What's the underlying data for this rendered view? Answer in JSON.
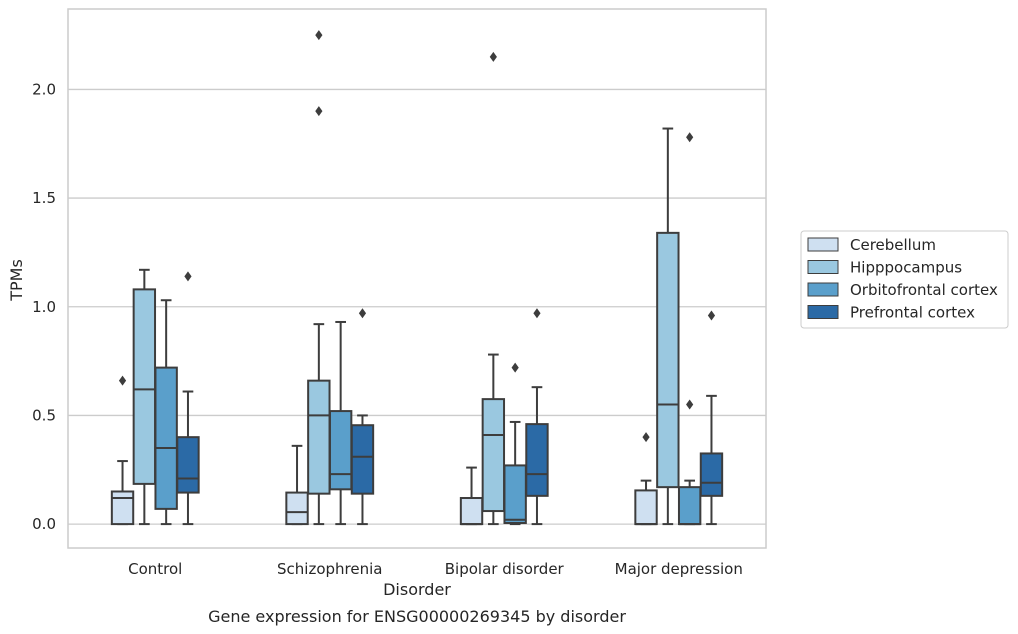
{
  "chart_data": {
    "type": "box",
    "title": "",
    "caption": "Gene expression for ENSG00000269345 by disorder",
    "xlabel": "Disorder",
    "ylabel": "TPMs",
    "ylim": [
      -0.11,
      2.37
    ],
    "yticks": [
      "0.0",
      "0.5",
      "1.0",
      "1.5",
      "2.0"
    ],
    "ytick_values": [
      0.0,
      0.5,
      1.0,
      1.5,
      2.0
    ],
    "grid": "horizontal",
    "legend_position": "right",
    "categories": [
      "Control",
      "Schizophrenia",
      "Bipolar disorder",
      "Major depression"
    ],
    "series": [
      {
        "name": "Cerebellum",
        "color": "#cfe0f1",
        "boxes": [
          {
            "whislo": 0.0,
            "q1": 0.0,
            "med": 0.12,
            "q3": 0.15,
            "whishi": 0.29,
            "fliers": [
              0.66
            ]
          },
          {
            "whislo": 0.0,
            "q1": 0.0,
            "med": 0.055,
            "q3": 0.145,
            "whishi": 0.36,
            "fliers": []
          },
          {
            "whislo": 0.0,
            "q1": 0.0,
            "med": 0.0,
            "q3": 0.12,
            "whishi": 0.26,
            "fliers": []
          },
          {
            "whislo": 0.0,
            "q1": 0.0,
            "med": 0.0,
            "q3": 0.155,
            "whishi": 0.2,
            "fliers": [
              0.4
            ]
          }
        ]
      },
      {
        "name": "Hipppocampus",
        "color": "#9ac8e0",
        "boxes": [
          {
            "whislo": 0.0,
            "q1": 0.185,
            "med": 0.62,
            "q3": 1.08,
            "whishi": 1.17,
            "fliers": []
          },
          {
            "whislo": 0.0,
            "q1": 0.14,
            "med": 0.5,
            "q3": 0.66,
            "whishi": 0.92,
            "fliers": [
              1.9,
              2.25
            ]
          },
          {
            "whislo": 0.0,
            "q1": 0.06,
            "med": 0.41,
            "q3": 0.575,
            "whishi": 0.78,
            "fliers": [
              2.15
            ]
          },
          {
            "whislo": 0.0,
            "q1": 0.17,
            "med": 0.55,
            "q3": 1.34,
            "whishi": 1.82,
            "fliers": []
          }
        ]
      },
      {
        "name": "Orbitofrontal cortex",
        "color": "#5a9fcb",
        "boxes": [
          {
            "whislo": 0.0,
            "q1": 0.07,
            "med": 0.35,
            "q3": 0.72,
            "whishi": 1.03,
            "fliers": []
          },
          {
            "whislo": 0.0,
            "q1": 0.16,
            "med": 0.23,
            "q3": 0.52,
            "whishi": 0.93,
            "fliers": []
          },
          {
            "whislo": 0.0,
            "q1": 0.005,
            "med": 0.02,
            "q3": 0.27,
            "whishi": 0.47,
            "fliers": [
              0.72
            ]
          },
          {
            "whislo": 0.0,
            "q1": 0.0,
            "med": 0.0,
            "q3": 0.17,
            "whishi": 0.2,
            "fliers": [
              0.55,
              1.78
            ]
          }
        ]
      },
      {
        "name": "Prefrontal cortex",
        "color": "#2b6aa6",
        "boxes": [
          {
            "whislo": 0.0,
            "q1": 0.145,
            "med": 0.21,
            "q3": 0.4,
            "whishi": 0.61,
            "fliers": [
              1.14
            ]
          },
          {
            "whislo": 0.0,
            "q1": 0.14,
            "med": 0.31,
            "q3": 0.455,
            "whishi": 0.5,
            "fliers": [
              0.97
            ]
          },
          {
            "whislo": 0.0,
            "q1": 0.13,
            "med": 0.23,
            "q3": 0.46,
            "whishi": 0.63,
            "fliers": [
              0.97
            ]
          },
          {
            "whislo": 0.0,
            "q1": 0.13,
            "med": 0.19,
            "q3": 0.325,
            "whishi": 0.59,
            "fliers": [
              0.96
            ]
          }
        ]
      }
    ]
  },
  "colors": {
    "box_edge": "#3d3d3d",
    "grid": "#cccccc",
    "frame": "#cccccc",
    "text": "#262626"
  }
}
